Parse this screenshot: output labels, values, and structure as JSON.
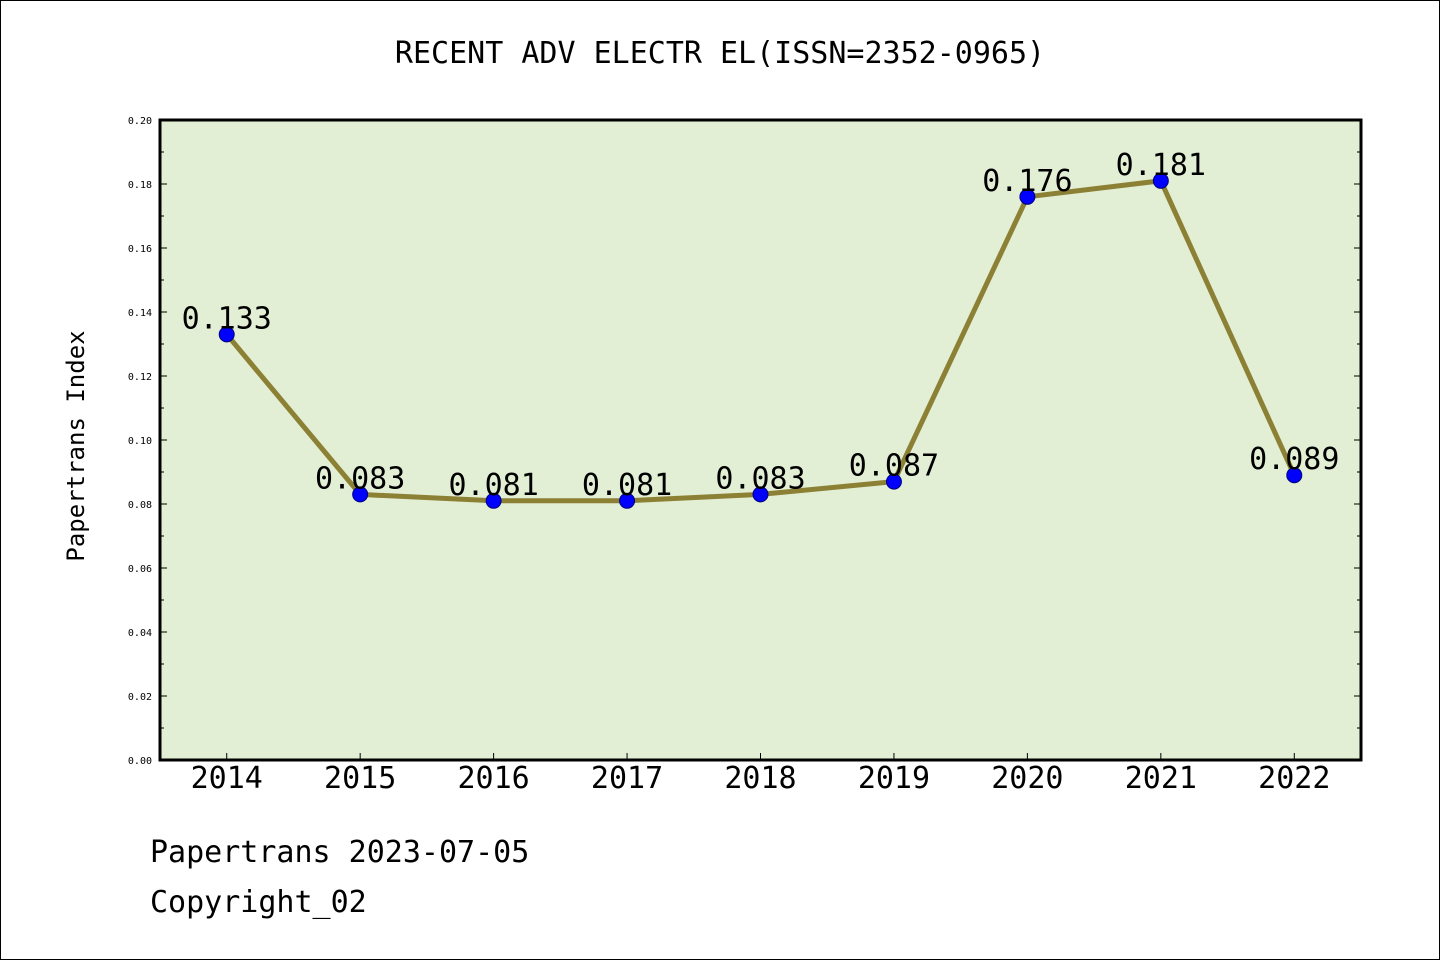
{
  "chart_data": {
    "type": "line",
    "title": "RECENT ADV ELECTR EL(ISSN=2352-0965)",
    "xlabel": "",
    "ylabel": "Papertrans Index",
    "categories": [
      "2014",
      "2015",
      "2016",
      "2017",
      "2018",
      "2019",
      "2020",
      "2021",
      "2022"
    ],
    "series": [
      {
        "values": [
          0.133,
          0.083,
          0.081,
          0.081,
          0.083,
          0.087,
          0.176,
          0.181,
          0.089
        ],
        "labels": [
          "0.133",
          "0.083",
          "0.081",
          "0.081",
          "0.083",
          "0.087",
          "0.176",
          "0.181",
          "0.089"
        ]
      }
    ],
    "ylim": [
      0,
      0.2
    ],
    "yticks": [
      "0.00",
      "0.02",
      "0.04",
      "0.06",
      "0.08",
      "0.10",
      "0.12",
      "0.14",
      "0.16",
      "0.18",
      "0.20"
    ],
    "grid": false,
    "colors": {
      "plot_background": "#e2efd5",
      "line": "#8c8034",
      "marker": "#0000ff",
      "marker_edge": "#00007a"
    }
  },
  "footer": {
    "line1": "Papertrans 2023-07-05",
    "line2": "Copyright_02"
  }
}
